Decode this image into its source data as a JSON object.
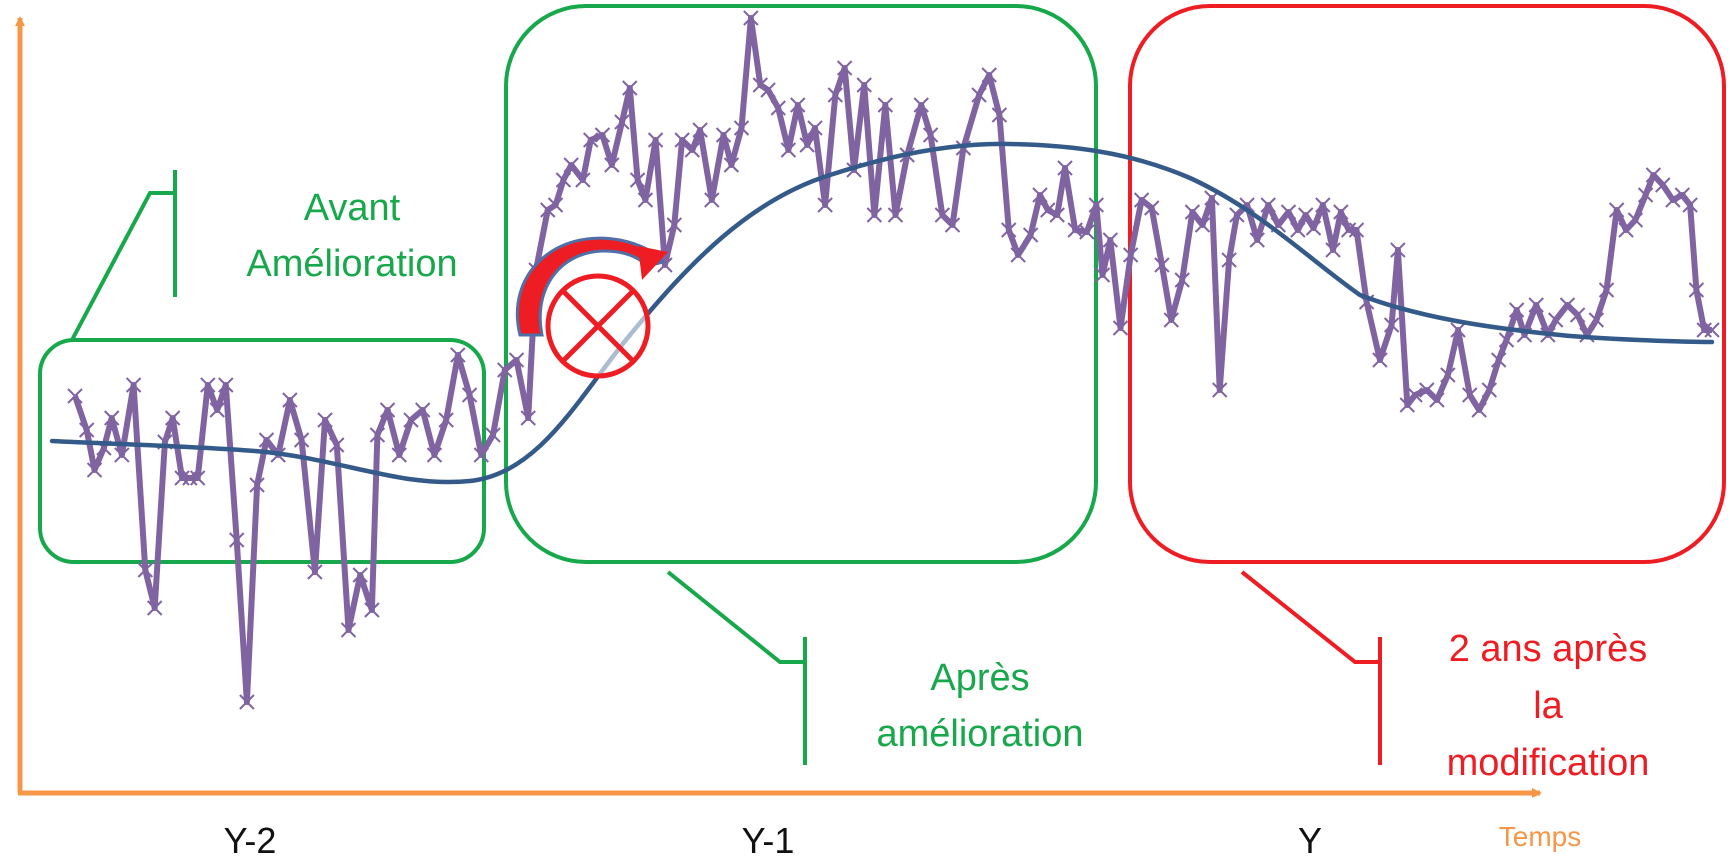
{
  "colors": {
    "axis": "#f79646",
    "green": "#17a84b",
    "red": "#ee1d23",
    "raw_series": "#8064a2",
    "trend": "#345a8a",
    "periods_text": "#111111"
  },
  "axis": {
    "x_label": "Temps"
  },
  "periods": [
    "Y-2",
    "Y-1",
    "Y"
  ],
  "callouts": {
    "before": [
      "Avant",
      "Amélioration"
    ],
    "after": [
      "Après",
      "amélioration"
    ],
    "two_years": [
      "2 ans après",
      "la",
      "modification"
    ]
  },
  "icons": {
    "rotation": "curved-arrow-icon",
    "mark": "crossed-circle-icon"
  }
}
